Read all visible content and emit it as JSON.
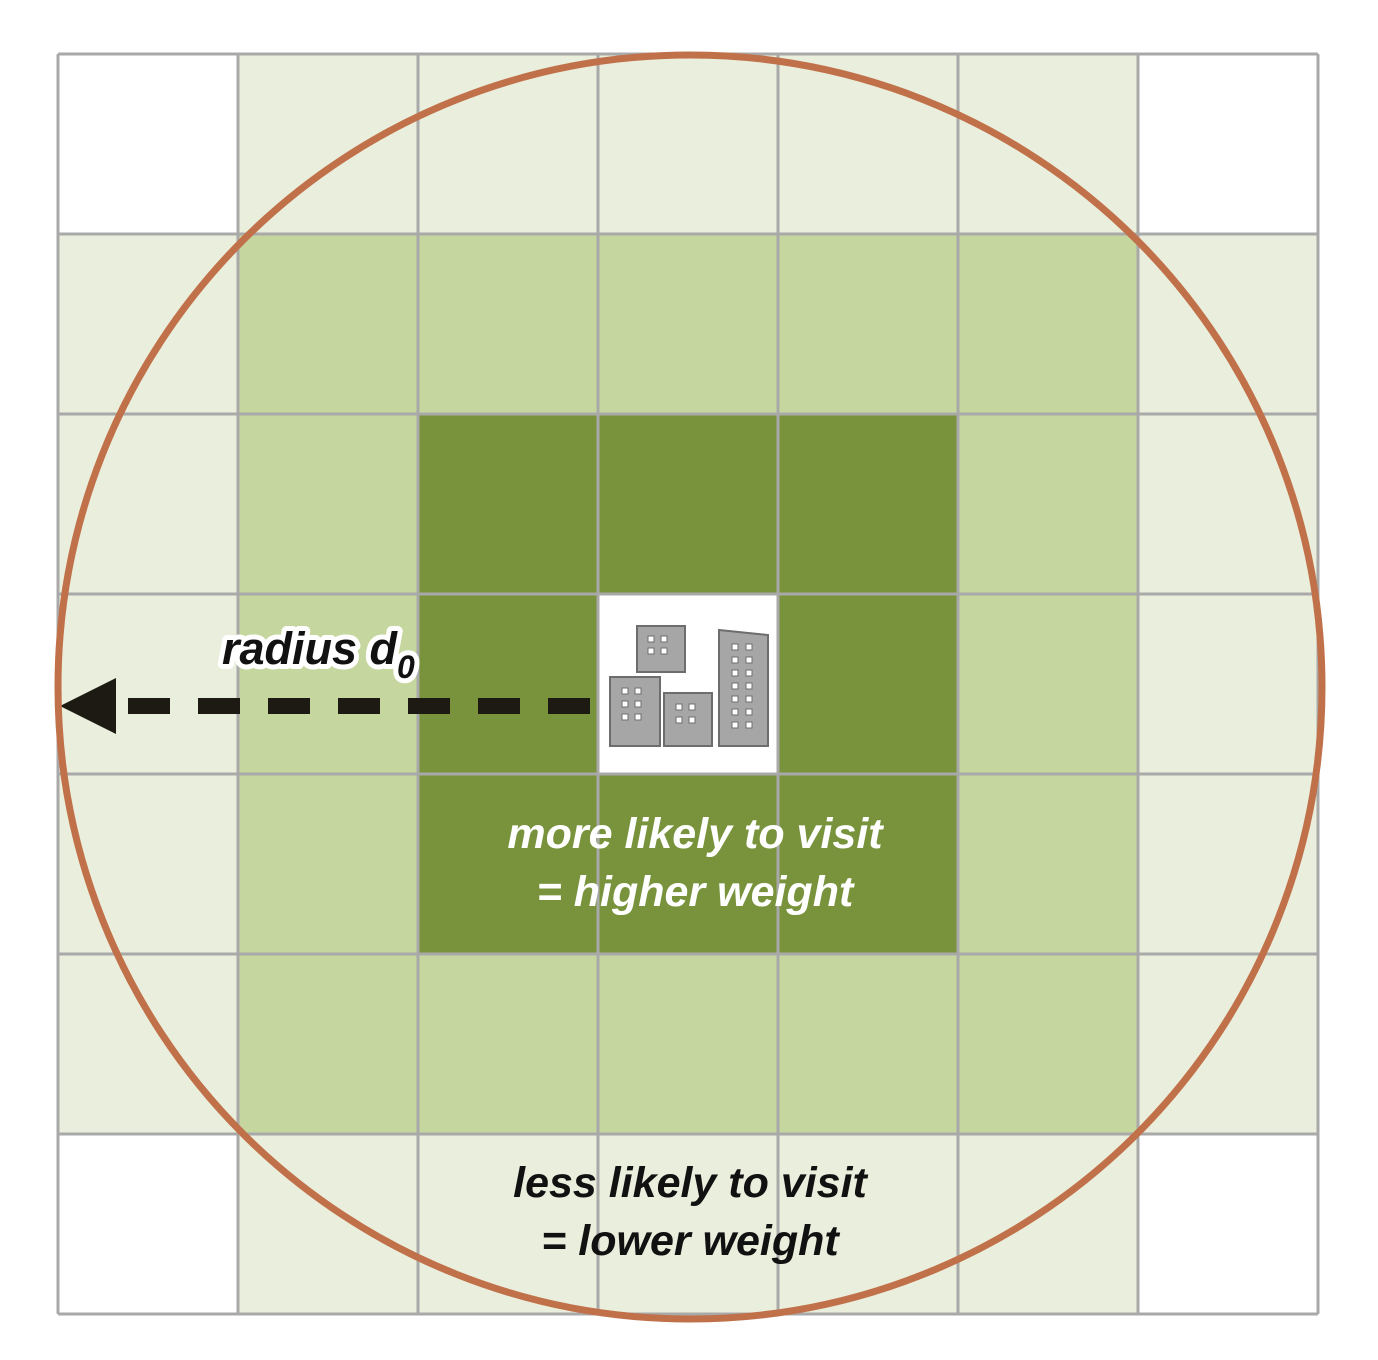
{
  "colors": {
    "background": "#ffffff",
    "outer_ring": "#eaeedc",
    "middle_ring": "#c5d69f",
    "inner_ring": "#78933c",
    "center_cell": "#ffffff",
    "grid_line": "#a9a9a9",
    "circle": "#c0714a",
    "arrow": "#1c1a12",
    "building": "#a6a6a6",
    "building_outline": "#6d6d6d",
    "label_light": "#ffffff",
    "label_dark": "#111111"
  },
  "grid": {
    "rows": 7,
    "cols": 7,
    "levels": [
      [
        0,
        1,
        1,
        1,
        1,
        1,
        0
      ],
      [
        1,
        2,
        2,
        2,
        2,
        2,
        1
      ],
      [
        1,
        2,
        3,
        3,
        3,
        2,
        1
      ],
      [
        1,
        2,
        3,
        4,
        3,
        2,
        1
      ],
      [
        1,
        2,
        3,
        3,
        3,
        2,
        1
      ],
      [
        1,
        2,
        2,
        2,
        2,
        2,
        1
      ],
      [
        0,
        1,
        1,
        1,
        1,
        1,
        0
      ]
    ],
    "level_names": [
      "outside",
      "outer",
      "middle",
      "inner",
      "center"
    ]
  },
  "center_icon": "city-buildings-icon",
  "arrow_icon": "dashed-left-arrow-icon",
  "labels": {
    "radius": "radius d",
    "radius_subscript": "0",
    "high_line1": "more likely to visit",
    "high_line2": "= higher weight",
    "low_line1": "less likely to visit",
    "low_line2": "= lower weight"
  }
}
